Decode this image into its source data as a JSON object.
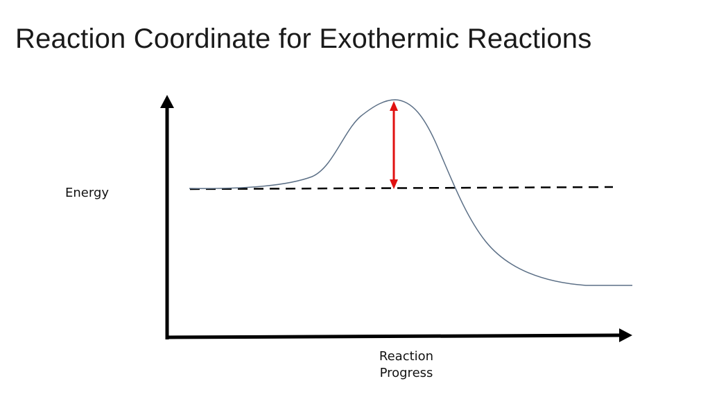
{
  "title": "Reaction Coordinate for Exothermic Reactions",
  "diagram": {
    "y_axis_label": "Energy",
    "x_axis_label_line1": "Reaction",
    "x_axis_label_line2": "Progress"
  },
  "colors": {
    "axes": "#000000",
    "curve": "#5b6f86",
    "reference_line": "#000000",
    "activation_arrow": "#e01010",
    "text": "#111111"
  }
}
